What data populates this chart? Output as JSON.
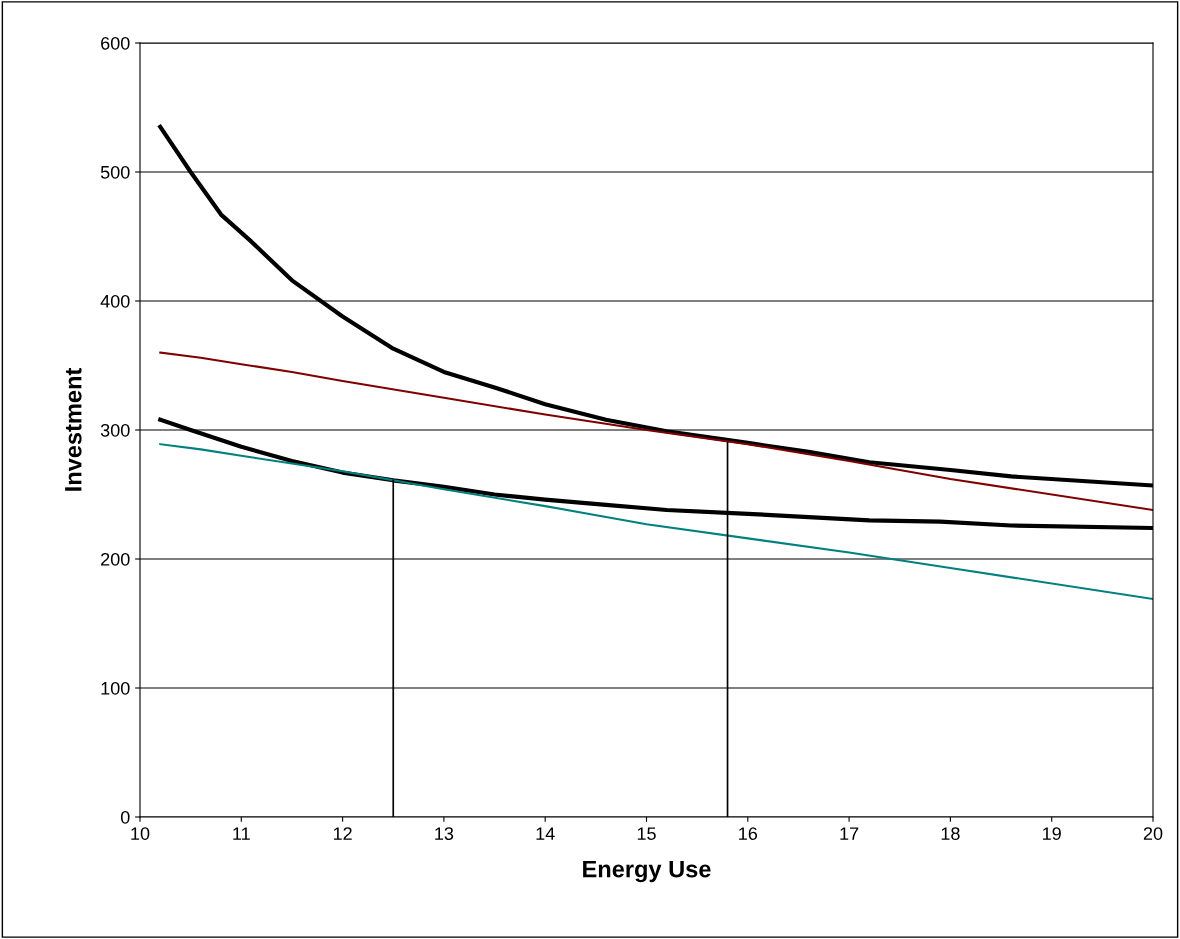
{
  "chart_data": {
    "type": "line",
    "xlabel": "Energy Use",
    "ylabel": "Investment",
    "xlim": [
      10,
      20
    ],
    "xticks": [
      10,
      11,
      12,
      13,
      14,
      15,
      16,
      17,
      18,
      19,
      20
    ],
    "ylim": [
      0,
      600
    ],
    "yticks": [
      0,
      100,
      200,
      300,
      400,
      500,
      600
    ],
    "grid": "y",
    "legend": false,
    "marker": "none",
    "series": [
      {
        "color": "#000000",
        "x": [
          10.2,
          10.5,
          10.8,
          11.1,
          11.5,
          12,
          12.5,
          13,
          13.5,
          14,
          14.6,
          15.2,
          16,
          16.6,
          17.2,
          18,
          18.6,
          20
        ],
        "values": [
          535,
          500,
          467,
          446,
          416,
          388,
          363,
          345,
          333,
          320,
          308,
          299,
          290,
          283,
          275,
          269,
          264,
          257
        ]
      },
      {
        "color": "#000000",
        "x": [
          10.2,
          10.5,
          11,
          11.5,
          12,
          12.5,
          13,
          13.5,
          14,
          14.6,
          15.2,
          16,
          17.2,
          17.9,
          18.6,
          20
        ],
        "values": [
          308,
          300,
          287,
          276,
          267,
          261,
          256,
          250,
          246,
          242,
          238,
          235,
          230,
          229,
          226,
          224
        ]
      },
      {
        "color": "#800000",
        "x": [
          10.2,
          10.6,
          11,
          11.5,
          12,
          13,
          14,
          15,
          16,
          17,
          18,
          20
        ],
        "values": [
          360,
          356,
          351,
          345,
          338,
          325,
          312,
          300,
          289,
          276,
          262,
          238
        ]
      },
      {
        "color": "#008080",
        "x": [
          10.2,
          10.6,
          11,
          12,
          13,
          14,
          15,
          16,
          17,
          18,
          20
        ],
        "values": [
          289,
          285,
          280,
          268,
          254,
          241,
          227,
          216,
          205,
          193,
          169
        ]
      },
      {
        "color": "#000000",
        "x": [
          12.5,
          12.5
        ],
        "values": [
          0,
          261
        ]
      },
      {
        "color": "#000000",
        "x": [
          15.8,
          15.8
        ],
        "values": [
          0,
          290
        ]
      }
    ]
  }
}
